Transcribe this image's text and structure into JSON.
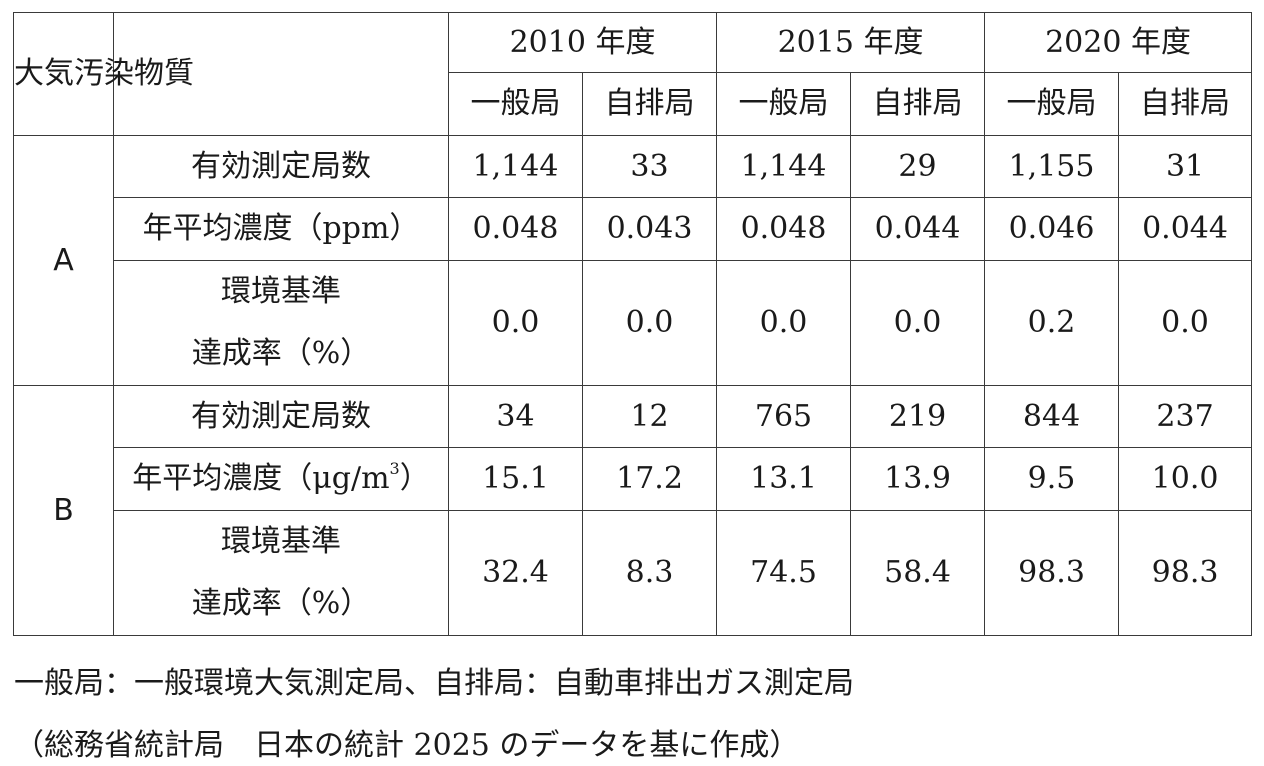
{
  "table": {
    "corner": "大気汚染物質",
    "years": [
      "2010 年度",
      "2015 年度",
      "2020 年度"
    ],
    "station_types": [
      "一般局",
      "自排局"
    ],
    "groups": [
      {
        "pollutant": "A",
        "rows": [
          {
            "label": "有効測定局数",
            "values": [
              "1,144",
              "33",
              "1,144",
              "29",
              "1,155",
              "31"
            ]
          },
          {
            "label": "年平均濃度（ppm）",
            "values": [
              "0.048",
              "0.043",
              "0.048",
              "0.044",
              "0.046",
              "0.044"
            ]
          },
          {
            "label_line1": "環境基準",
            "label_line2": "達成率（%）",
            "values": [
              "0.0",
              "0.0",
              "0.0",
              "0.0",
              "0.2",
              "0.0"
            ]
          }
        ]
      },
      {
        "pollutant": "B",
        "rows": [
          {
            "label": "有効測定局数",
            "values": [
              "34",
              "12",
              "765",
              "219",
              "844",
              "237"
            ]
          },
          {
            "label_prefix": "年平均濃度（μg/m",
            "label_sup": "3",
            "label_suffix": "）",
            "values": [
              "15.1",
              "17.2",
              "13.1",
              "13.9",
              "9.5",
              "10.0"
            ]
          },
          {
            "label_line1": "環境基準",
            "label_line2": "達成率（%）",
            "values": [
              "32.4",
              "8.3",
              "74.5",
              "58.4",
              "98.3",
              "98.3"
            ]
          }
        ]
      }
    ]
  },
  "notes": {
    "legend": "一般局：一般環境大気測定局、自排局：自動車排出ガス測定局",
    "source": "（総務省統計局　日本の統計 2025 のデータを基に作成）"
  }
}
